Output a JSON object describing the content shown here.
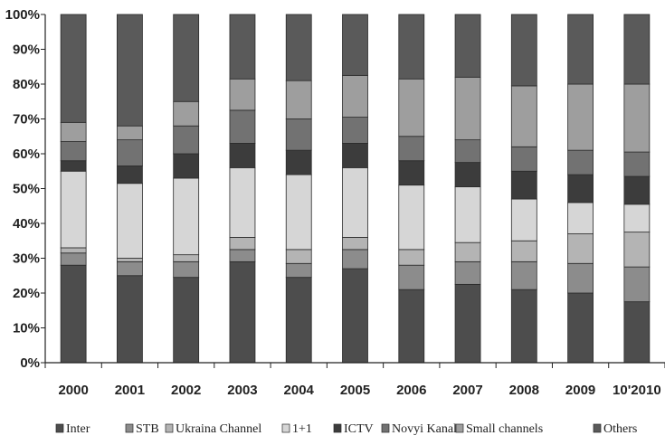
{
  "chart_data": {
    "type": "bar",
    "stacked": true,
    "percent": true,
    "categories": [
      "2000",
      "2001",
      "2002",
      "2003",
      "2004",
      "2005",
      "2006",
      "2007",
      "2008",
      "2009",
      "10'2010"
    ],
    "ylim": [
      0,
      100
    ],
    "yticks": [
      "0%",
      "10%",
      "20%",
      "30%",
      "40%",
      "50%",
      "60%",
      "70%",
      "80%",
      "90%",
      "100%"
    ],
    "grid": false,
    "legend_position": "bottom",
    "series": [
      {
        "name": "Inter",
        "color": "#4d4d4d",
        "values": [
          28,
          25,
          24.5,
          29,
          24.5,
          27,
          21,
          22.5,
          21,
          20,
          17.5
        ]
      },
      {
        "name": "STB",
        "color": "#8c8c8c",
        "values": [
          3.5,
          4,
          4.5,
          3.5,
          4,
          5.5,
          7,
          6.5,
          8,
          8.5,
          10
        ]
      },
      {
        "name": "Ukraina Channel",
        "color": "#b4b4b4",
        "values": [
          1.5,
          1,
          2,
          3.5,
          4,
          3.5,
          4.5,
          5.5,
          6,
          8.5,
          10
        ]
      },
      {
        "name": "1+1",
        "color": "#d6d6d6",
        "values": [
          22,
          21.5,
          22,
          20,
          21.5,
          20,
          18.5,
          16,
          12,
          9,
          8
        ]
      },
      {
        "name": "ICTV",
        "color": "#3c3c3c",
        "values": [
          3,
          5,
          7,
          7,
          7,
          7,
          7,
          7,
          8,
          8,
          8
        ]
      },
      {
        "name": "Novyi Kanal",
        "color": "#727272",
        "values": [
          5.5,
          7.5,
          8,
          9.5,
          9,
          7.5,
          7,
          6.5,
          7,
          7,
          7
        ]
      },
      {
        "name": "Small channels",
        "color": "#9e9e9e",
        "values": [
          5.5,
          4,
          7,
          9,
          11,
          12,
          16.5,
          18,
          17.5,
          19,
          19.5
        ]
      },
      {
        "name": "Others",
        "color": "#5a5a5a",
        "values": [
          31,
          32,
          25,
          18.5,
          19,
          17.5,
          18.5,
          18,
          20.5,
          20,
          20
        ]
      }
    ]
  }
}
